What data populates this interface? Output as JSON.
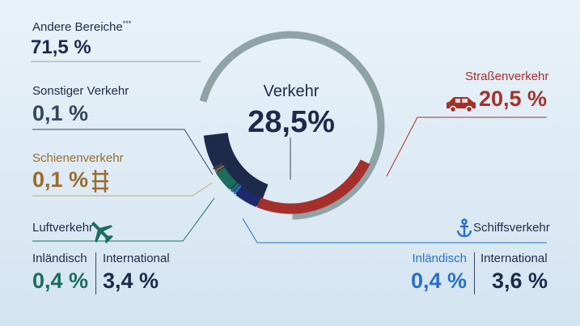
{
  "colors": {
    "andere": "#8fa3a5",
    "verkehr": "#1e2a4a",
    "strasse": "#a5302b",
    "luft": "#1e6c5c",
    "schiff_inland": "#2a70c4",
    "schiff_int": "#1e2a6a",
    "schiene": "#9a6b2e",
    "sonstig": "#34485a"
  },
  "center": {
    "title": "Verkehr",
    "value": "28,5%"
  },
  "labels": {
    "andere": {
      "name": "Andere Bereiche",
      "sup": "***",
      "value": "71,5 %"
    },
    "sonstig": {
      "name": "Sonstiger Verkehr",
      "value": "0,1 %"
    },
    "schiene": {
      "name": "Schienenverkehr",
      "value": "0,1 %"
    },
    "strasse": {
      "name": "Straßenverkehr",
      "value": "20,5 %"
    },
    "luft": {
      "name": "Luftverkehr",
      "inland_label": "Inländisch",
      "inland_value": "0,4 %",
      "int_label": "International",
      "int_value": "3,4 %"
    },
    "schiff": {
      "name": "Schiffsverkehr",
      "inland_label": "Inländisch",
      "inland_value": "0,4 %",
      "int_label": "International",
      "int_value": "3,6 %"
    }
  },
  "icons": {
    "strasse": "car-icon",
    "schiene": "rail-track-icon",
    "luft": "airplane-icon",
    "schiff": "anchor-icon"
  },
  "chart_data": {
    "type": "pie",
    "title": "Verkehr 28,5%",
    "outer_ring": [
      {
        "name": "Andere Bereiche",
        "value": 71.5
      },
      {
        "name": "Verkehr",
        "value": 28.5
      }
    ],
    "inner_ring": [
      {
        "name": "Straßenverkehr",
        "value": 20.5
      },
      {
        "name": "Schiffsverkehr International",
        "value": 3.6
      },
      {
        "name": "Schiffsverkehr Inländisch",
        "value": 0.4
      },
      {
        "name": "Luftverkehr Inländisch",
        "value": 0.4
      },
      {
        "name": "Luftverkehr International",
        "value": 3.4
      },
      {
        "name": "Schienenverkehr",
        "value": 0.1
      },
      {
        "name": "Sonstiger Verkehr",
        "value": 0.1
      }
    ]
  }
}
